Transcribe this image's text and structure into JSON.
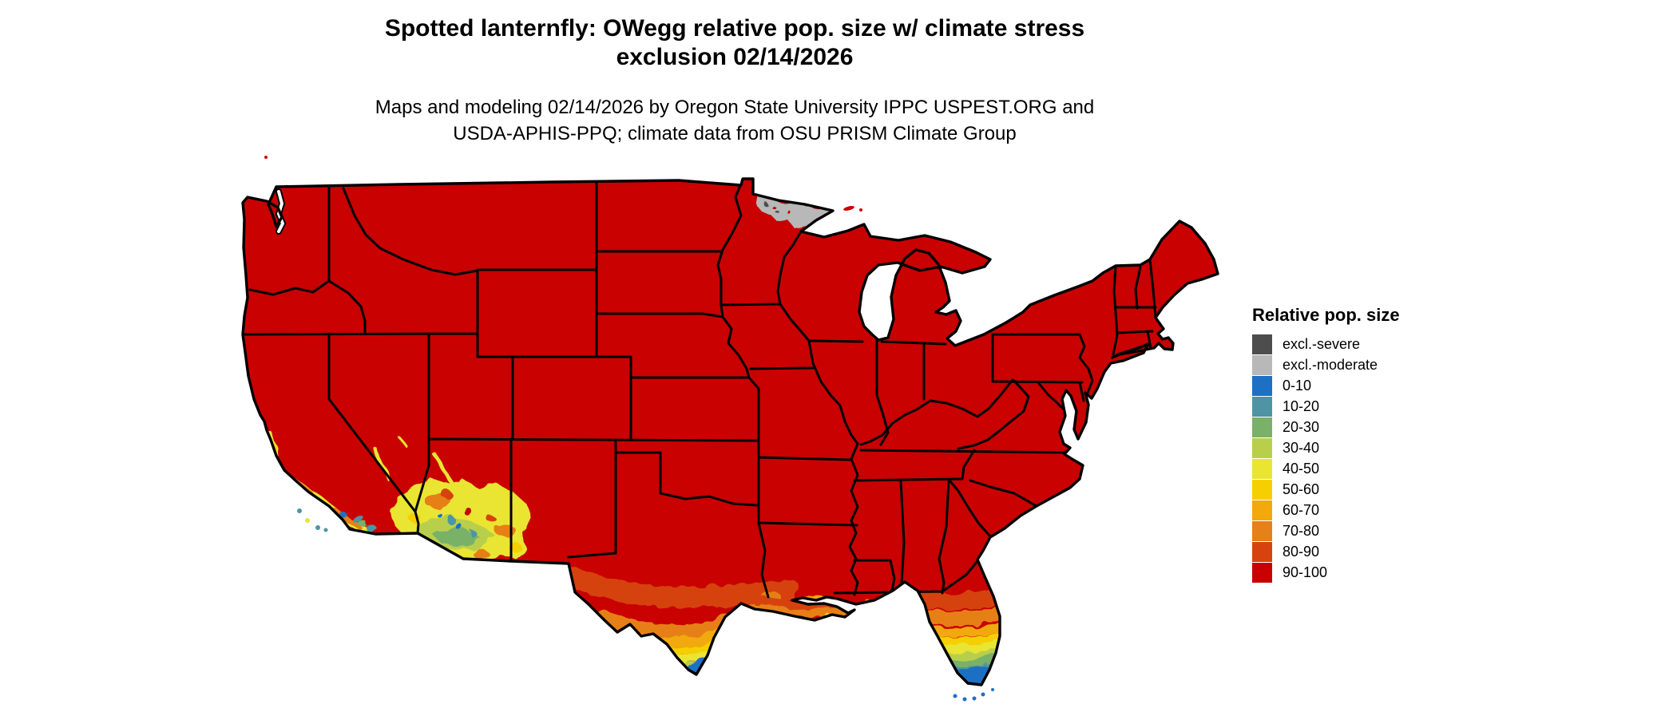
{
  "title": {
    "line1": "Spotted lanternfly: OWegg relative pop. size w/ climate stress",
    "line2": "exclusion 02/14/2026"
  },
  "subtitle": {
    "line1": "Maps and modeling 02/14/2026 by Oregon State University IPPC USPEST.ORG and",
    "line2": "USDA-APHIS-PPQ; climate data from OSU PRISM Climate Group"
  },
  "legend": {
    "title": "Relative pop. size",
    "items": [
      {
        "label": "excl.-severe",
        "color": "#4d4d4d"
      },
      {
        "label": "excl.-moderate",
        "color": "#b8b8b8"
      },
      {
        "label": "0-10",
        "color": "#1d70c4"
      },
      {
        "label": "10-20",
        "color": "#4e94a4"
      },
      {
        "label": "20-30",
        "color": "#79b168"
      },
      {
        "label": "30-40",
        "color": "#b9cf4b"
      },
      {
        "label": "40-50",
        "color": "#e9e531"
      },
      {
        "label": "50-60",
        "color": "#f6cf00"
      },
      {
        "label": "60-70",
        "color": "#f1a90b"
      },
      {
        "label": "70-80",
        "color": "#e68019"
      },
      {
        "label": "80-90",
        "color": "#d6430e"
      },
      {
        "label": "90-100",
        "color": "#c90101"
      }
    ]
  },
  "map": {
    "name": "Contiguous United States",
    "border_color": "#000000",
    "base_category": "90-100",
    "regions": [
      {
        "area": "Most of the contiguous US",
        "category": "90-100"
      },
      {
        "area": "Northern Minnesota along Canadian border",
        "category": "excl.-moderate"
      },
      {
        "area": "Southern California coast and Channel Islands",
        "category": "mixed 0-80"
      },
      {
        "area": "Southern Arizona / far SW New Mexico",
        "category": "mixed 0-80"
      },
      {
        "area": "South Texas, gradient toward Rio Grande Valley tip",
        "category": "gradient 80-90 down to 0-10"
      },
      {
        "area": "Louisiana / Mississippi delta Gulf Coast",
        "category": "60-90"
      },
      {
        "area": "Florida peninsula, north-to-south gradient",
        "category": "gradient 80-90 down to 0-10"
      },
      {
        "area": "Florida Keys",
        "category": "0-10"
      }
    ]
  }
}
